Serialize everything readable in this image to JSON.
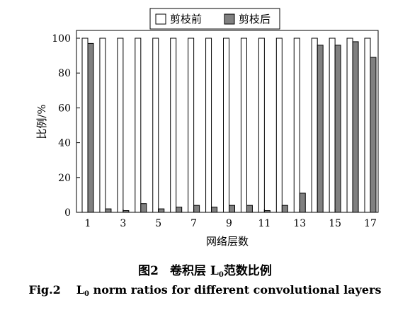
{
  "chart_data": {
    "type": "bar",
    "xlabel": "网络层数",
    "ylabel": "比例/%",
    "ylim": [
      0,
      100
    ],
    "yticks": [
      0,
      20,
      40,
      60,
      80,
      100
    ],
    "xtick_labels": [
      "1",
      "3",
      "5",
      "7",
      "9",
      "11",
      "13",
      "15",
      "17"
    ],
    "categories": [
      "1",
      "2",
      "3",
      "4",
      "5",
      "6",
      "7",
      "8",
      "9",
      "10",
      "11",
      "12",
      "13",
      "14",
      "15",
      "16",
      "17"
    ],
    "legend_position": "top-right",
    "series": [
      {
        "name": "剪枝前",
        "color": "#ffffff",
        "values": [
          100,
          100,
          100,
          100,
          100,
          100,
          100,
          100,
          100,
          100,
          100,
          100,
          100,
          100,
          100,
          100,
          100
        ]
      },
      {
        "name": "剪枝后",
        "color": "#808080",
        "values": [
          97,
          2,
          1,
          5,
          2,
          3,
          4,
          3,
          4,
          4,
          1,
          4,
          11,
          96,
          96,
          98,
          89
        ]
      }
    ]
  },
  "caption": {
    "cn_fig": "图2",
    "cn_pre": "卷积层 L",
    "cn_sub": "0",
    "cn_post": "范数比例",
    "en_fig": "Fig.2",
    "en_pre": "L",
    "en_sub": "0",
    "en_post": " norm ratios for different convolutional layers"
  }
}
